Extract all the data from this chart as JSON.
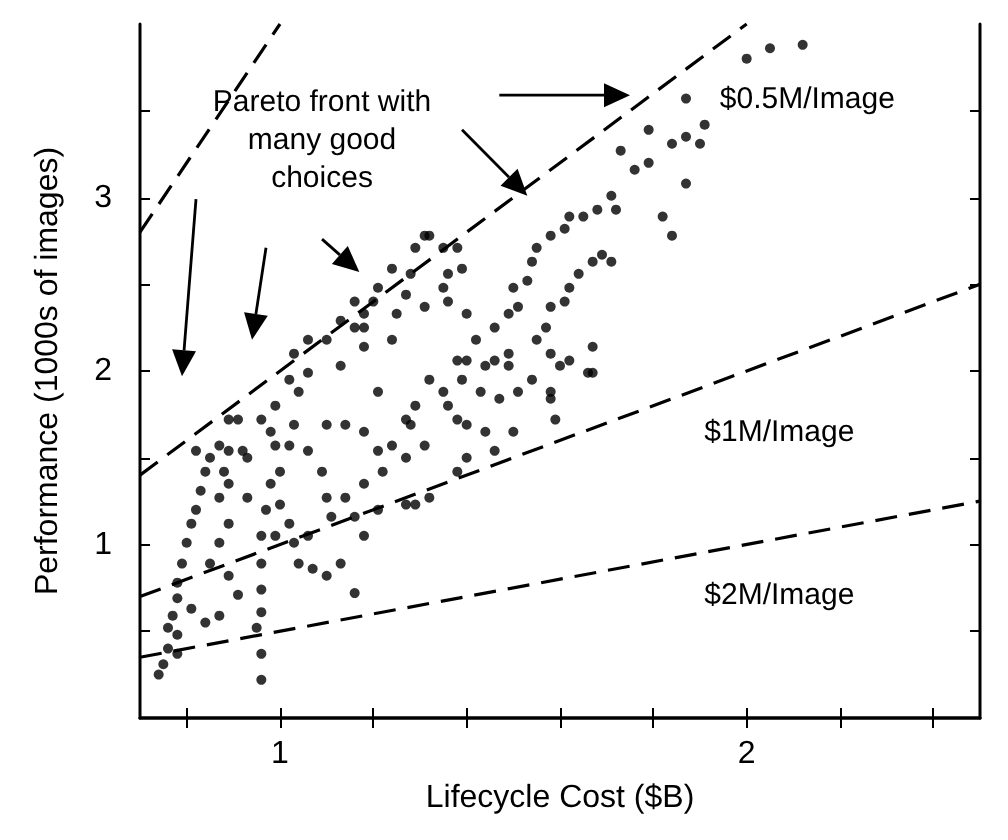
{
  "chart_data": {
    "type": "scatter",
    "xlabel": "Lifecycle Cost ($B)",
    "ylabel": "Performance (1000s of images)",
    "xlim": [
      0.7,
      2.5
    ],
    "ylim": [
      0,
      4
    ],
    "xticks": [
      {
        "value": 0.8,
        "label": null
      },
      1,
      {
        "value": 1.2,
        "label": null
      },
      {
        "value": 1.4,
        "label": null
      },
      {
        "value": 1.6,
        "label": null
      },
      {
        "value": 1.8,
        "label": null
      },
      2,
      {
        "value": 2.2,
        "label": null
      },
      {
        "value": 2.4,
        "label": null
      }
    ],
    "yticks": [
      {
        "value": 0.5,
        "label": null
      },
      1,
      {
        "value": 1.5,
        "label": null
      },
      2,
      {
        "value": 2.5,
        "label": null
      },
      3,
      {
        "value": 3.5,
        "label": null
      }
    ],
    "series": [
      {
        "type": "scatter",
        "color": "#000000",
        "marker": "circle",
        "x": [
          0.74,
          0.75,
          0.76,
          0.76,
          0.77,
          0.78,
          0.78,
          0.79,
          0.8,
          0.81,
          0.82,
          0.83,
          0.84,
          0.82,
          0.85,
          0.87,
          0.87,
          0.88,
          0.89,
          0.89,
          0.87,
          0.85,
          0.89,
          0.91,
          0.87,
          0.84,
          0.81,
          0.78,
          0.78,
          0.91,
          0.89,
          0.89,
          0.92,
          0.93,
          0.93,
          0.96,
          0.96,
          0.96,
          0.96,
          0.95,
          0.96,
          0.96,
          0.97,
          0.98,
          0.99,
          1.0,
          1.02,
          1.03,
          1.04,
          1.06,
          1.07,
          1.1,
          1.13,
          1.16,
          1.0,
          1.02,
          0.99,
          0.98,
          0.96,
          0.99,
          1.03,
          1.06,
          1.09,
          1.1,
          1.04,
          1.06,
          1.02,
          1.03,
          1.06,
          1.1,
          1.13,
          1.16,
          1.18,
          1.18,
          1.21,
          1.1,
          1.14,
          1.18,
          1.21,
          1.24,
          1.27,
          1.22,
          1.18,
          1.14,
          1.11,
          1.16,
          1.18,
          1.21,
          1.27,
          1.29,
          1.32,
          1.38,
          1.4,
          1.46,
          1.5,
          1.44,
          1.4,
          1.38,
          1.36,
          1.35,
          1.39,
          1.4,
          1.42,
          1.46,
          1.49,
          1.51,
          1.5,
          1.53,
          1.54,
          1.55,
          1.58,
          1.61,
          1.62,
          1.65,
          1.68,
          1.71,
          1.72,
          1.69,
          1.67,
          1.64,
          1.62,
          1.61,
          1.58,
          1.57,
          1.55,
          1.58,
          1.6,
          1.62,
          1.67,
          1.67,
          1.58,
          1.59,
          1.54,
          1.51,
          1.49,
          1.47,
          1.43,
          1.44,
          1.38,
          1.32,
          1.29,
          1.28,
          1.31,
          1.27,
          1.24,
          1.25,
          1.27,
          1.28,
          1.29,
          1.31,
          1.32,
          1.35,
          1.38,
          1.36,
          1.39,
          1.35,
          1.36,
          1.31,
          1.24,
          1.21,
          1.2,
          1.16,
          1.13,
          1.18,
          1.73,
          1.76,
          1.79,
          1.79,
          1.82,
          1.84,
          1.87,
          1.9,
          1.91,
          1.87,
          1.84,
          2.0,
          2.05,
          2.12,
          1.87,
          1.71,
          1.66,
          1.58,
          1.49,
          1.46,
          1.4
        ],
        "values": [
          0.25,
          0.31,
          0.4,
          0.52,
          0.59,
          0.69,
          0.78,
          0.89,
          1.01,
          1.12,
          1.2,
          1.31,
          1.42,
          1.54,
          1.5,
          1.57,
          1.27,
          1.42,
          1.35,
          1.12,
          1.01,
          0.89,
          0.82,
          0.71,
          0.59,
          0.55,
          0.63,
          0.48,
          0.37,
          1.72,
          1.72,
          1.54,
          1.54,
          1.5,
          1.27,
          1.05,
          0.89,
          0.74,
          0.61,
          0.52,
          0.37,
          0.22,
          1.2,
          1.35,
          1.05,
          1.23,
          1.12,
          1.01,
          0.89,
          1.05,
          0.86,
          0.82,
          0.89,
          0.72,
          1.42,
          1.57,
          1.57,
          1.65,
          1.72,
          1.8,
          1.69,
          1.54,
          1.42,
          1.27,
          1.88,
          1.99,
          1.95,
          2.1,
          2.18,
          2.18,
          2.03,
          2.25,
          2.33,
          2.14,
          1.88,
          1.69,
          1.69,
          1.65,
          1.54,
          1.57,
          1.5,
          1.42,
          1.35,
          1.27,
          1.16,
          1.16,
          1.05,
          1.2,
          1.23,
          1.23,
          1.27,
          1.42,
          1.5,
          1.54,
          1.65,
          1.65,
          1.69,
          1.72,
          1.8,
          1.88,
          1.95,
          2.06,
          2.18,
          2.25,
          2.33,
          2.37,
          2.48,
          2.52,
          2.63,
          2.71,
          2.78,
          2.82,
          2.89,
          2.89,
          2.93,
          3.01,
          2.93,
          2.67,
          2.63,
          2.56,
          2.48,
          2.4,
          2.37,
          2.25,
          2.18,
          2.1,
          2.03,
          2.06,
          2.14,
          1.99,
          1.88,
          1.72,
          1.95,
          1.88,
          2.03,
          1.84,
          1.88,
          2.03,
          2.06,
          1.95,
          1.8,
          1.69,
          1.57,
          1.72,
          2.18,
          2.33,
          2.44,
          2.56,
          2.71,
          2.78,
          2.78,
          2.71,
          2.71,
          2.56,
          2.59,
          2.48,
          2.4,
          2.37,
          2.59,
          2.48,
          2.4,
          2.4,
          2.29,
          2.25,
          3.27,
          3.16,
          3.2,
          3.39,
          2.89,
          3.31,
          3.35,
          3.31,
          3.42,
          3.08,
          2.78,
          3.8,
          3.86,
          3.88,
          3.57,
          2.63,
          1.99,
          1.84,
          2.1,
          2.06,
          2.33
        ]
      },
      {
        "type": "line",
        "color": "#000000",
        "marker": "none",
        "line_style": "dashed",
        "x": [
          0.7,
          1.0
        ],
        "values": [
          2.8,
          4.0
        ]
      },
      {
        "type": "line",
        "color": "#000000",
        "marker": "none",
        "line_style": "dashed",
        "x": [
          0.7,
          2.0
        ],
        "values": [
          1.4,
          4.0
        ]
      },
      {
        "type": "line",
        "color": "#000000",
        "marker": "none",
        "line_style": "dashed",
        "x": [
          0.7,
          2.5
        ],
        "values": [
          0.7,
          2.5
        ]
      },
      {
        "type": "line",
        "color": "#000000",
        "marker": "none",
        "line_style": "dashed",
        "x": [
          0.7,
          2.5
        ],
        "values": [
          0.35,
          1.25
        ]
      }
    ],
    "annotations": [
      "Pareto front with many good choices",
      "$0.5M/Image",
      "$1M/Image",
      "$2M/Image"
    ]
  }
}
